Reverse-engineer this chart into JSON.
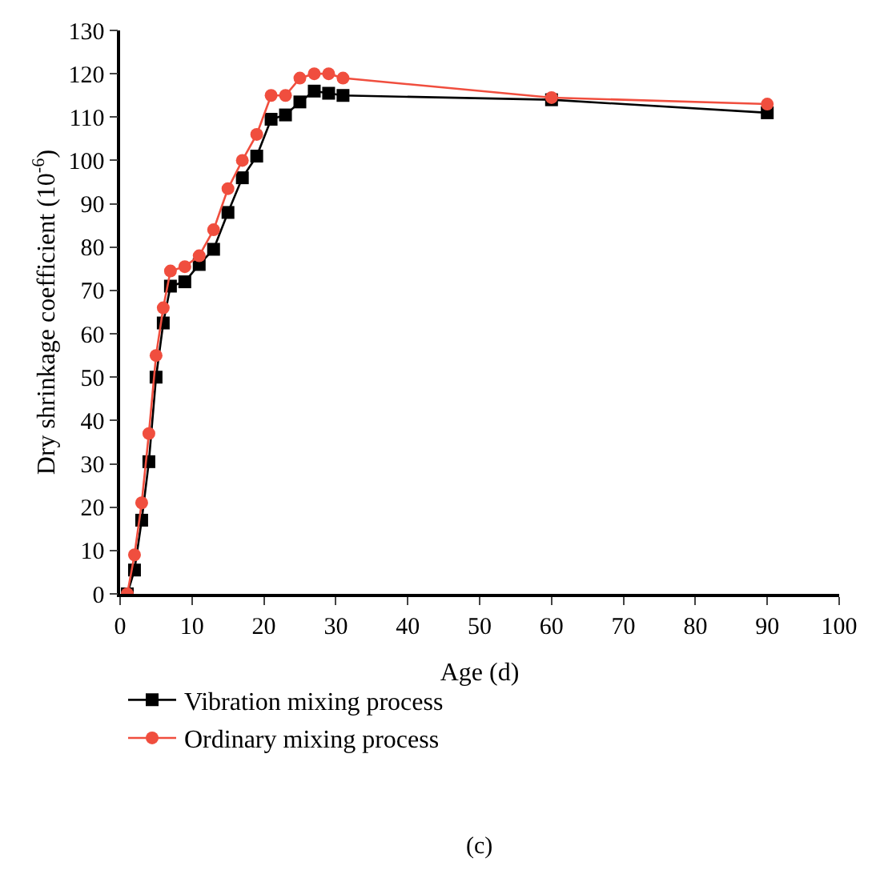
{
  "chart_data": {
    "type": "line",
    "xlabel": "Age (d)",
    "ylabel": "Dry shrinkage coefficient (10$^{-6}$)",
    "xlim": [
      0,
      100
    ],
    "xticks": [
      0,
      10,
      20,
      30,
      40,
      50,
      60,
      70,
      80,
      90,
      100
    ],
    "ylim": [
      0,
      130
    ],
    "yticks": [
      0,
      10,
      20,
      30,
      40,
      50,
      60,
      70,
      80,
      90,
      100,
      110,
      120,
      130
    ],
    "legend": "bottom",
    "annotations": [
      "(c)"
    ],
    "series": [
      {
        "name": "Vibration mixing process",
        "color": "#000000",
        "marker": "square",
        "x": [
          1,
          2,
          3,
          4,
          5,
          6,
          7,
          9,
          11,
          13,
          15,
          17,
          19,
          21,
          23,
          25,
          27,
          29,
          31,
          60,
          90
        ],
        "values": [
          0,
          5.5,
          17,
          30.5,
          50,
          62.5,
          71,
          72,
          76,
          79.5,
          88,
          96,
          101,
          109.5,
          110.5,
          113.5,
          116,
          115.5,
          115,
          114,
          111
        ]
      },
      {
        "name": "Ordinary mixing process",
        "color": "#f04e3e",
        "marker": "circle",
        "x": [
          1,
          2,
          3,
          4,
          5,
          6,
          7,
          9,
          11,
          13,
          15,
          17,
          19,
          21,
          23,
          25,
          27,
          29,
          31,
          60,
          90
        ],
        "values": [
          0,
          9,
          21,
          37,
          55,
          66,
          74.5,
          75.5,
          78,
          84,
          93.5,
          100,
          106,
          115,
          115,
          119,
          120,
          120,
          119,
          114.5,
          113
        ]
      }
    ]
  }
}
